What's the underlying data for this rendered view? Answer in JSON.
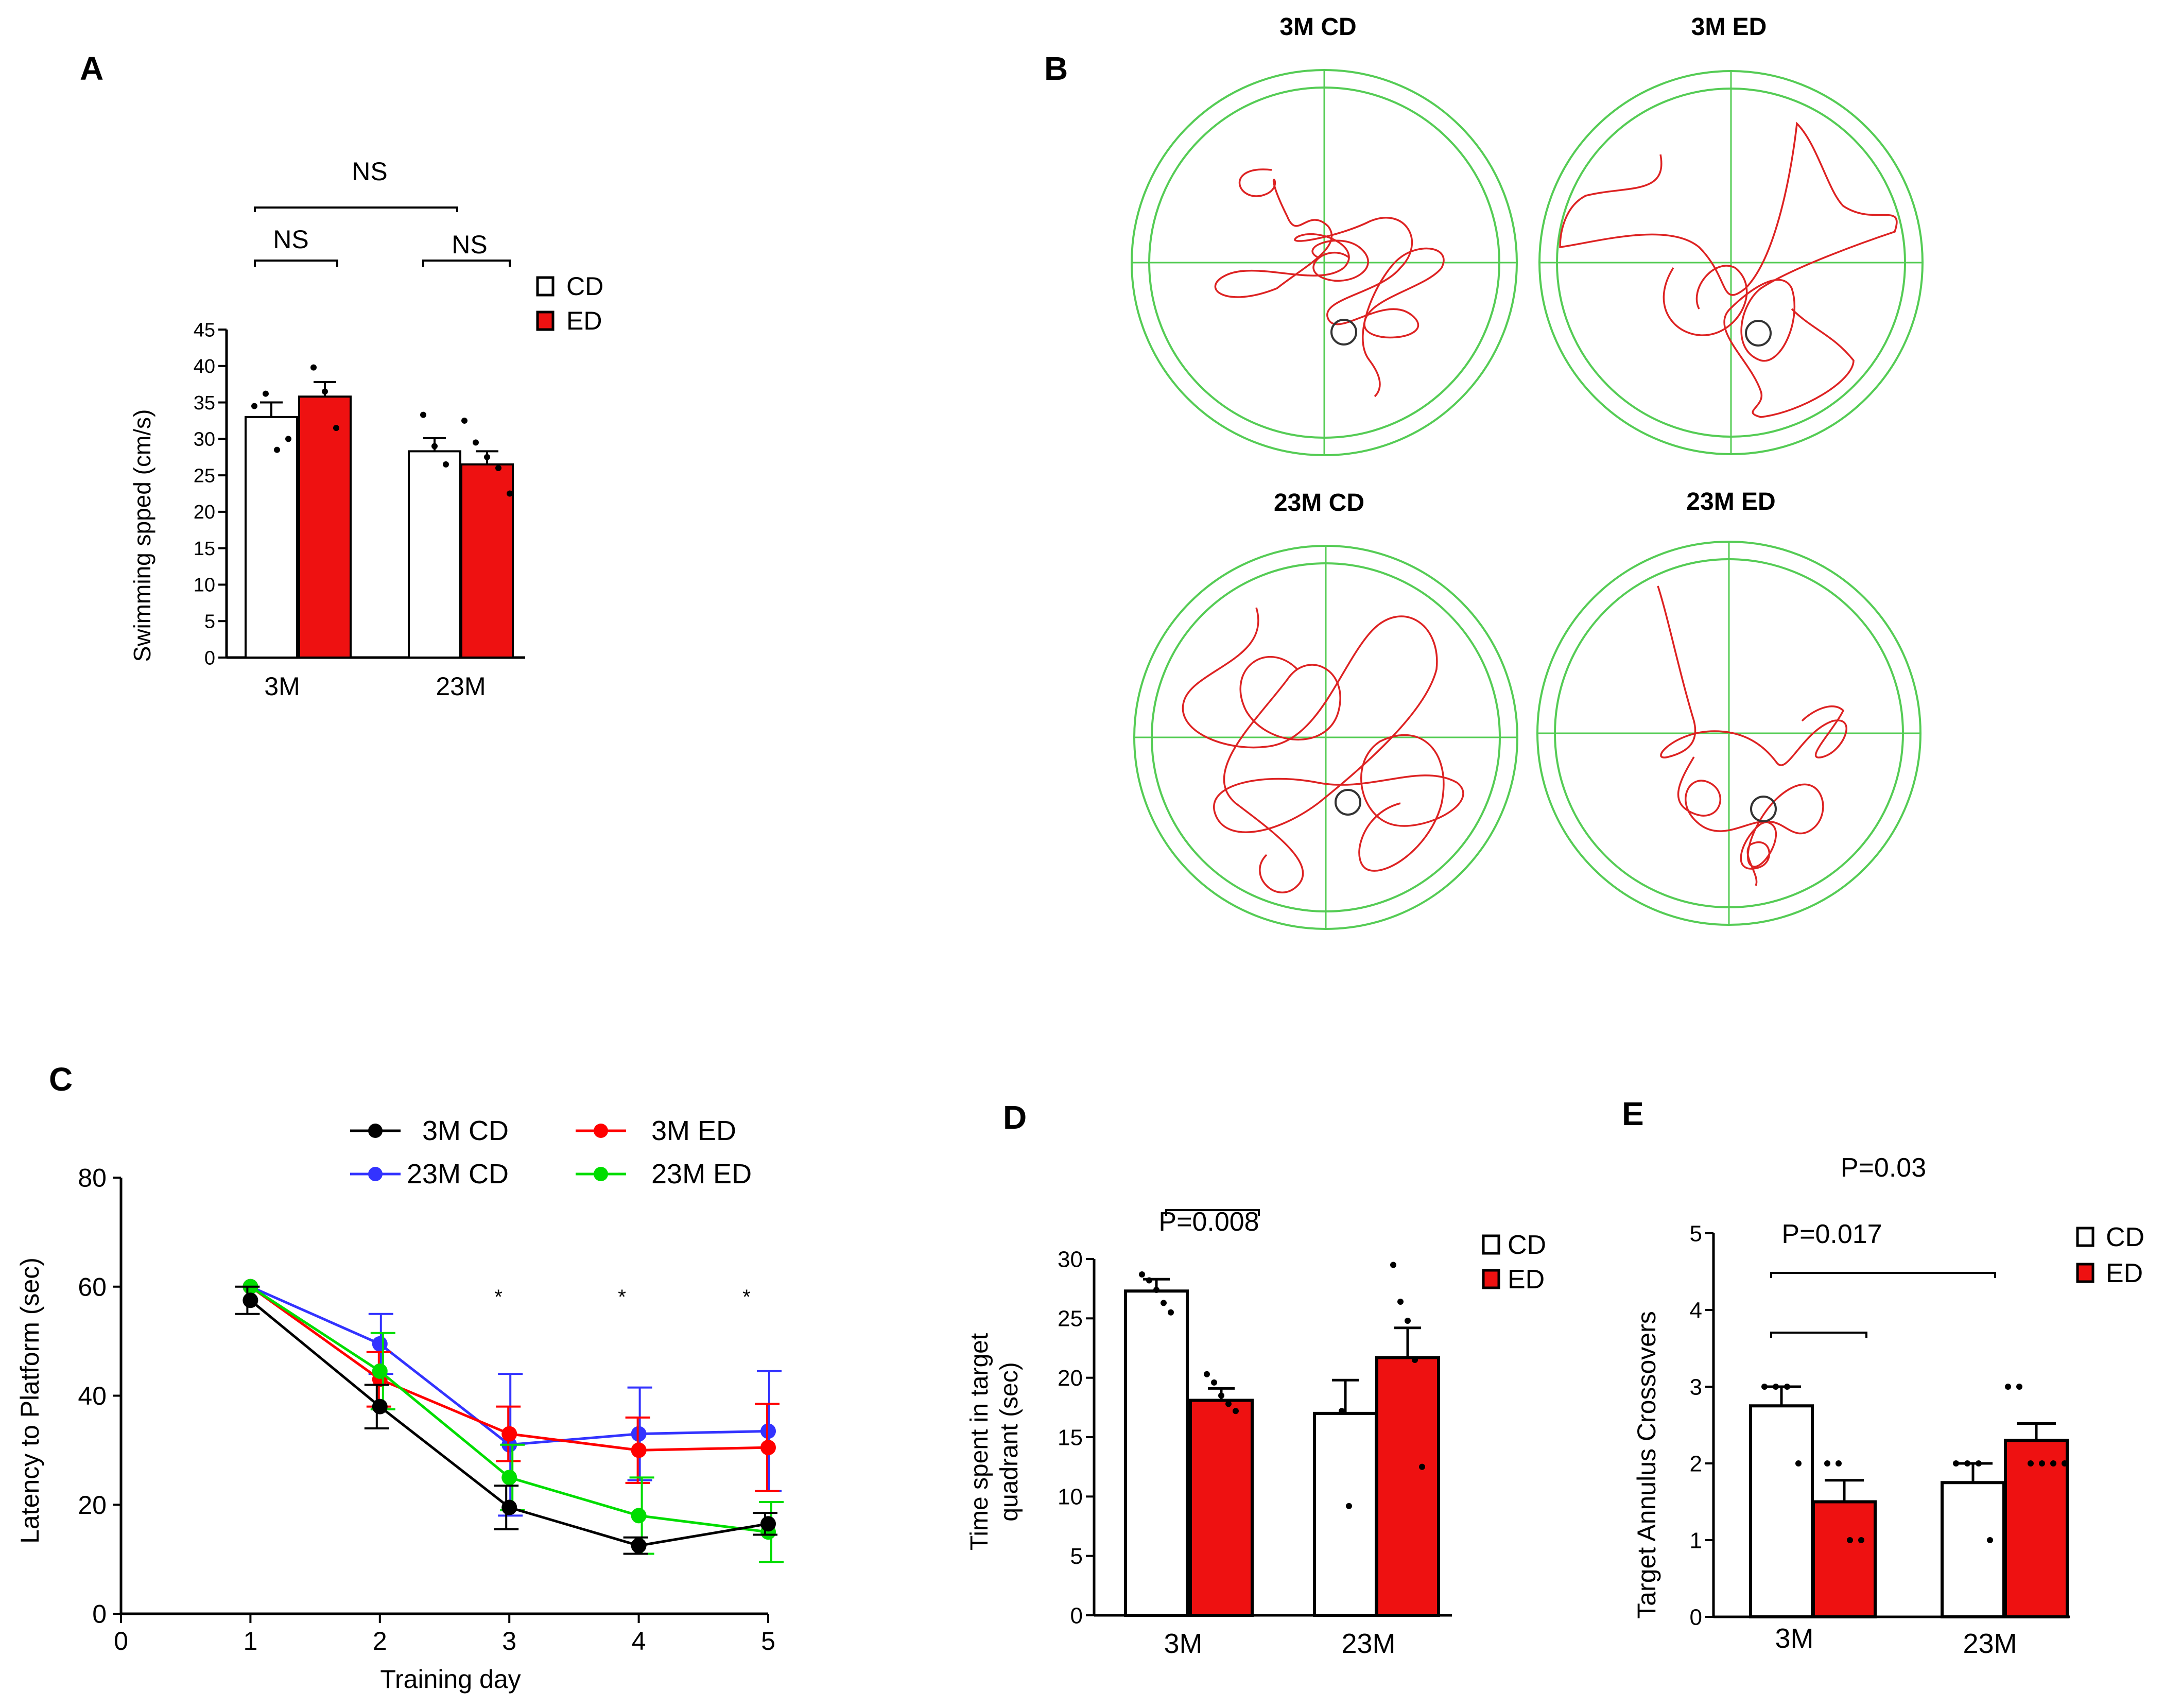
{
  "panel_letters": {
    "a": "A",
    "b": "B",
    "c": "C",
    "d": "D",
    "e": "E"
  },
  "colors": {
    "cd_fill": "#ffffff",
    "ed_fill": "#ee1111",
    "black": "#000000",
    "red": "#ff0000",
    "blue": "#3333ff",
    "green": "#00dd00",
    "maze_green": "#55cc55",
    "path_red": "#dd2222"
  },
  "chart_data": [
    {
      "id": "A",
      "type": "bar",
      "ylabel": "Swimming spped (cm/s)",
      "ylim": [
        0,
        45
      ],
      "yticks": [
        "0",
        "5",
        "10",
        "15",
        "20",
        "25",
        "30",
        "35",
        "40",
        "45"
      ],
      "categories": [
        "3M",
        "23M"
      ],
      "legend": [
        "CD",
        "ED"
      ],
      "series": [
        {
          "name": "CD",
          "values": [
            33,
            28.3
          ],
          "errors": [
            2,
            1.8
          ],
          "points": [
            [
              34.5,
              36.2,
              28.5,
              30
            ]
          ]
        },
        {
          "name": "ED",
          "values": [
            35.8,
            26.5
          ],
          "errors": [
            2,
            1.8
          ],
          "points": [
            [
              39.8,
              36.5,
              31.5
            ]
          ]
        }
      ],
      "points_cd_23m": [
        33.3,
        29,
        26.5
      ],
      "points_ed_23m": [
        32.5,
        29.5,
        27.5,
        26,
        22.5
      ],
      "comparisons": [
        {
          "label": "NS",
          "level": "top"
        },
        {
          "label": "NS",
          "level": "3M"
        },
        {
          "label": "NS",
          "level": "23M"
        }
      ]
    },
    {
      "id": "B",
      "type": "other",
      "titles": [
        "3M CD",
        "3M ED",
        "23M CD",
        "23M ED"
      ]
    },
    {
      "id": "C",
      "type": "line",
      "xlabel": "Training day",
      "ylabel": "Latency to Platform (sec)",
      "xlim": [
        0,
        5
      ],
      "ylim": [
        0,
        80
      ],
      "xticks": [
        "0",
        "1",
        "2",
        "3",
        "4",
        "5"
      ],
      "yticks": [
        "0",
        "20",
        "40",
        "60",
        "80"
      ],
      "x": [
        1,
        2,
        3,
        4,
        5
      ],
      "series": [
        {
          "name": "3M CD",
          "values": [
            57.5,
            38,
            19.5,
            12.5,
            16.5
          ],
          "errors": [
            2.5,
            4,
            4,
            1.5,
            2
          ]
        },
        {
          "name": "3M ED",
          "values": [
            60,
            43,
            33,
            30,
            30.5
          ],
          "errors": [
            0,
            5,
            5,
            6,
            8
          ]
        },
        {
          "name": "23M CD",
          "values": [
            60,
            49.5,
            31,
            33,
            33.5
          ],
          "errors": [
            0,
            5.5,
            13,
            8.5,
            11
          ]
        },
        {
          "name": "23M ED",
          "values": [
            60,
            44.5,
            25,
            18,
            15
          ],
          "errors": [
            0,
            7,
            6,
            7,
            5.5
          ]
        }
      ],
      "significance": [
        "*",
        "*",
        "*"
      ]
    },
    {
      "id": "D",
      "type": "bar",
      "ylabel_line1": "Time spent in target",
      "ylabel_line2": "quadrant (sec)",
      "ylim": [
        0,
        30
      ],
      "yticks": [
        "0",
        "5",
        "10",
        "15",
        "20",
        "25",
        "30"
      ],
      "categories": [
        "3M",
        "23M"
      ],
      "legend": [
        "CD",
        "ED"
      ],
      "series": [
        {
          "name": "CD",
          "values": [
            27.3,
            17
          ],
          "errors": [
            1,
            2.8
          ]
        },
        {
          "name": "ED",
          "values": [
            18.1,
            21.7
          ],
          "errors": [
            1,
            2.5
          ]
        }
      ],
      "comparisons": [
        {
          "label": "P=0.008"
        }
      ]
    },
    {
      "id": "E",
      "type": "bar",
      "ylabel": "Target Annulus Crossovers",
      "ylim": [
        0,
        5
      ],
      "yticks": [
        "0",
        "1",
        "2",
        "3",
        "4",
        "5"
      ],
      "categories": [
        "3M",
        "23M"
      ],
      "legend": [
        "CD",
        "ED"
      ],
      "series": [
        {
          "name": "CD",
          "values": [
            2.75,
            1.75
          ],
          "errors": [
            0.25,
            0.25
          ]
        },
        {
          "name": "ED",
          "values": [
            1.5,
            2.3
          ],
          "errors": [
            0.28,
            0.22
          ]
        }
      ],
      "comparisons": [
        {
          "label": "P=0.017"
        },
        {
          "label": "P=0.03"
        }
      ]
    }
  ]
}
